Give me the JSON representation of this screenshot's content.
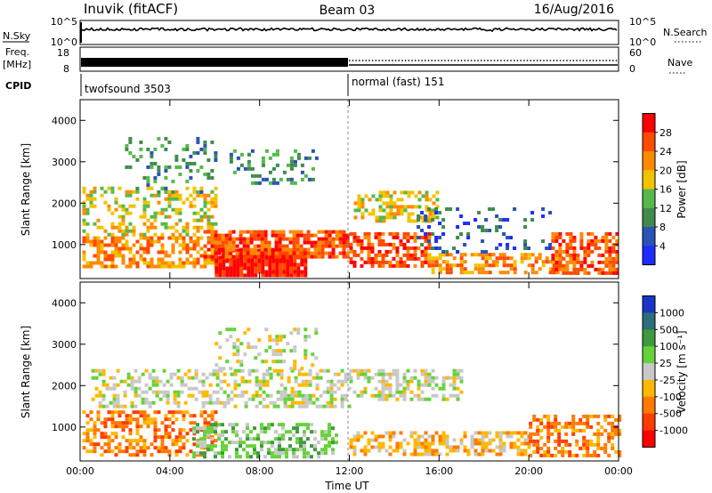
{
  "header": {
    "station": "Inuvik (fitACF)",
    "beam": "Beam 03",
    "date": "16/Aug/2016"
  },
  "status_panels": {
    "nsky_label": "N.Sky",
    "nsky_top": "10^5",
    "nsky_bottom": "10^0",
    "nsearch_label": "N.Search",
    "nsearch_top": "10^5",
    "nsearch_bottom": "10^0",
    "freq_label_1": "Freq.",
    "freq_label_2": "[MHz]",
    "freq_top": "18",
    "freq_bottom": "8",
    "nave_label": "Nave",
    "nave_top": "60",
    "nave_bottom": "0",
    "cpid_label": "CPID",
    "cpid_segments": [
      {
        "name": "twofsound 3503",
        "start": "00:00",
        "end": "12:00"
      },
      {
        "name": "normal (fast) 151",
        "start": "12:00",
        "end": "24:00"
      }
    ]
  },
  "chart_data": [
    {
      "type": "heatmap",
      "name": "power",
      "xlabel": "",
      "ylabel": "Slant Range [km]",
      "xlim": [
        0,
        24
      ],
      "ylim": [
        180,
        4500
      ],
      "yticks": [
        1000,
        2000,
        3000,
        4000
      ],
      "colorbar": {
        "label": "Power [dB]",
        "ticks": [
          "4",
          "8",
          "12",
          "16",
          "20",
          "24",
          "28"
        ],
        "colors": [
          "#1f2bff",
          "#2a52b8",
          "#3f8b4d",
          "#55b94a",
          "#f2c200",
          "#ff8a00",
          "#ff4a00",
          "#ff0000"
        ]
      },
      "blobs": [
        {
          "t0": 0.1,
          "t1": 6.0,
          "r0": 500,
          "r1": 1200,
          "level": 5,
          "density": 0.55
        },
        {
          "t0": 0.1,
          "t1": 6.0,
          "r0": 1200,
          "r1": 2400,
          "level": 4,
          "density": 0.4
        },
        {
          "t0": 2.0,
          "t1": 6.0,
          "r0": 2300,
          "r1": 3600,
          "level": 2,
          "density": 0.22
        },
        {
          "t0": 6.0,
          "t1": 10.0,
          "r0": 250,
          "r1": 900,
          "level": 7,
          "density": 0.95
        },
        {
          "t0": 5.5,
          "t1": 12.0,
          "r0": 700,
          "r1": 1350,
          "level": 6,
          "density": 0.75
        },
        {
          "t0": 6.5,
          "t1": 10.5,
          "r0": 2500,
          "r1": 3300,
          "level": 2,
          "density": 0.25
        },
        {
          "t0": 12.0,
          "t1": 15.5,
          "r0": 500,
          "r1": 1300,
          "level": 6,
          "density": 0.6
        },
        {
          "t0": 12.2,
          "t1": 16.0,
          "r0": 1600,
          "r1": 2300,
          "level": 4,
          "density": 0.45
        },
        {
          "t0": 15.5,
          "t1": 21.5,
          "r0": 300,
          "r1": 800,
          "level": 5,
          "density": 0.55
        },
        {
          "t0": 15.0,
          "t1": 21.0,
          "r0": 800,
          "r1": 1900,
          "level": 1,
          "density": 0.15
        },
        {
          "t0": 21.0,
          "t1": 24.0,
          "r0": 300,
          "r1": 1300,
          "level": 6,
          "density": 0.6
        }
      ]
    },
    {
      "type": "heatmap",
      "name": "velocity",
      "xlabel": "Time UT",
      "ylabel": "Slant Range [km]",
      "xlim": [
        0,
        24
      ],
      "ylim": [
        180,
        4500
      ],
      "xticks": [
        "00:00",
        "04:00",
        "08:00",
        "12:00",
        "16:00",
        "20:00",
        "00:00"
      ],
      "yticks": [
        1000,
        2000,
        3000,
        4000
      ],
      "colorbar": {
        "label": "Velocity [m s⁻¹]",
        "ticks": [
          "1000",
          "500",
          "100",
          "25",
          "-25",
          "-100",
          "-500",
          "-1000"
        ],
        "colors": [
          "#1a34c8",
          "#2c6e7a",
          "#3f9a3f",
          "#66d23a",
          "#c8c8c8",
          "#ffb800",
          "#ff7a00",
          "#ff3c00",
          "#ff0000"
        ]
      },
      "blobs": [
        {
          "t0": 0.1,
          "t1": 6.0,
          "r0": 300,
          "r1": 1400,
          "level": 6,
          "density": 0.5
        },
        {
          "t0": 0.5,
          "t1": 12.0,
          "r0": 1500,
          "r1": 2400,
          "level": 4,
          "density": 0.45
        },
        {
          "t0": 5.0,
          "t1": 11.5,
          "r0": 300,
          "r1": 1100,
          "level": 3,
          "density": 0.55
        },
        {
          "t0": 6.0,
          "t1": 10.5,
          "r0": 2400,
          "r1": 3400,
          "level": 4,
          "density": 0.25
        },
        {
          "t0": 12.0,
          "t1": 17.0,
          "r0": 1700,
          "r1": 2400,
          "level": 4,
          "density": 0.45
        },
        {
          "t0": 12.0,
          "t1": 20.0,
          "r0": 300,
          "r1": 900,
          "level": 5,
          "density": 0.55
        },
        {
          "t0": 20.0,
          "t1": 24.0,
          "r0": 300,
          "r1": 1300,
          "level": 6,
          "density": 0.5
        }
      ]
    }
  ]
}
